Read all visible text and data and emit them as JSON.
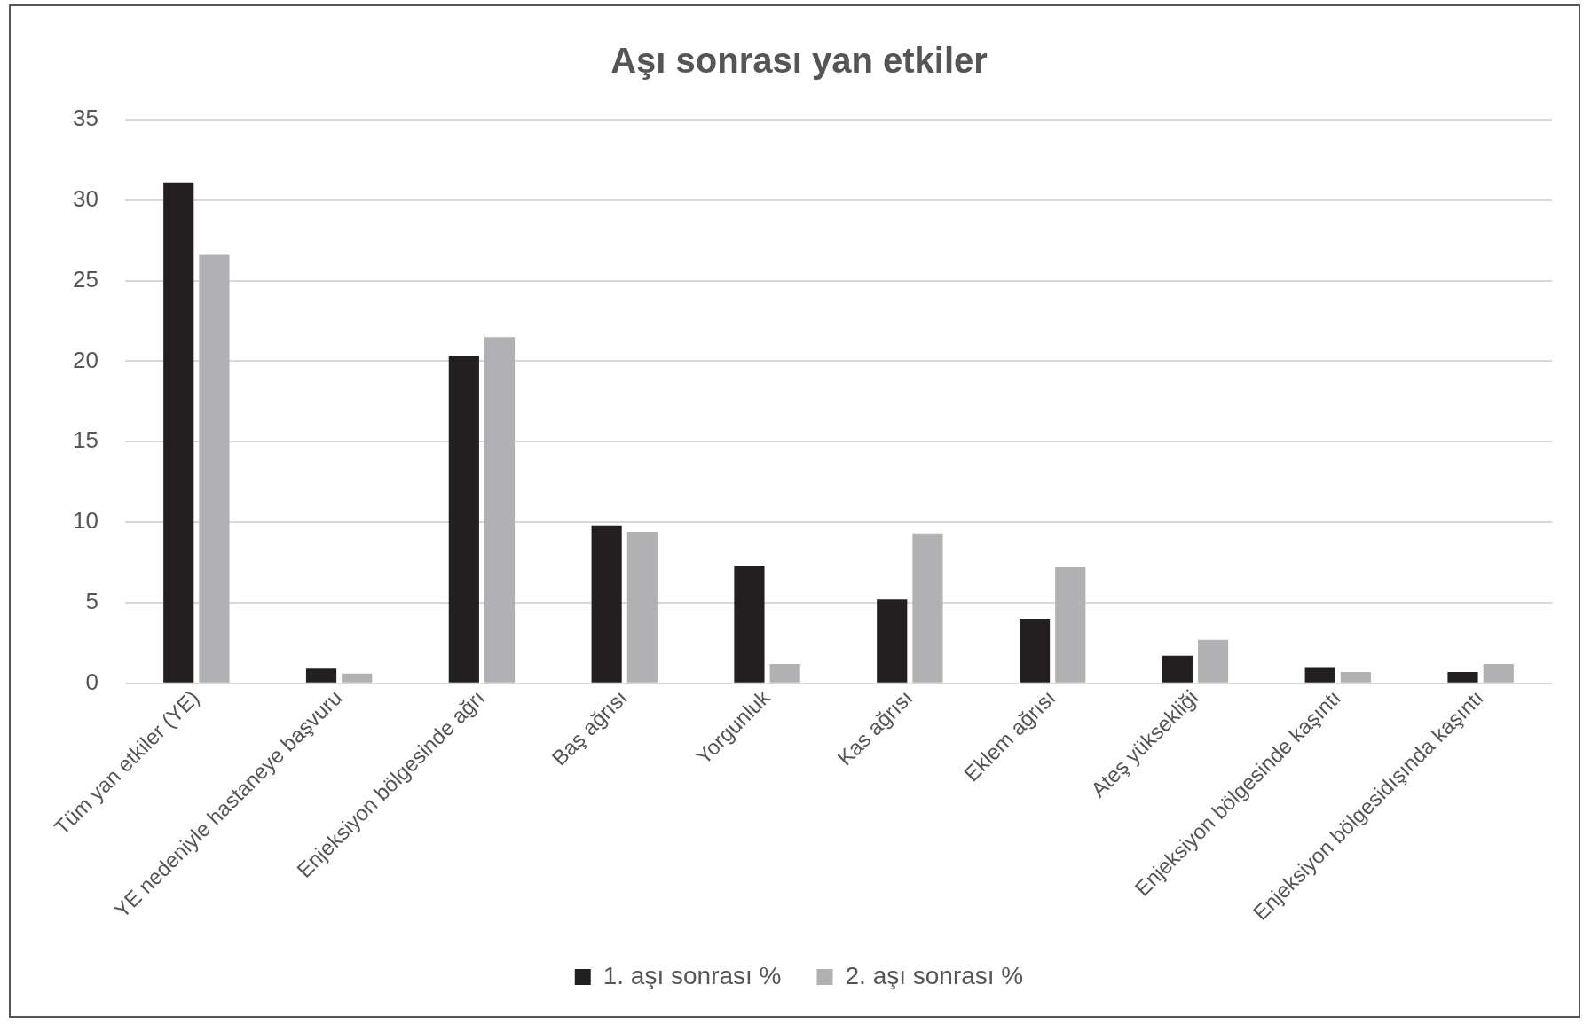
{
  "chart_data": {
    "type": "bar",
    "title": "Aşı sonrası yan etkiler",
    "categories": [
      "Tüm yan etkiler (YE)",
      "YE nedeniyle hastaneye başvuru",
      "Enjeksiyon bölgesinde ağrı",
      "Baş ağrısı",
      "Yorgunluk",
      "Kas ağrısı",
      "Eklem ağrısı",
      "Ateş yüksekliği",
      "Enjeksiyon bölgesinde kaşıntı",
      "Enjeksiyon bölgesidışında kaşıntı"
    ],
    "series": [
      {
        "name": "1. aşı sonrası %",
        "color": "#231f20",
        "values": [
          31.1,
          0.9,
          20.3,
          9.8,
          7.3,
          5.2,
          4.0,
          1.7,
          1.0,
          0.7
        ]
      },
      {
        "name": "2. aşı sonrası %",
        "color": "#b1b1b3",
        "values": [
          26.6,
          0.6,
          21.5,
          9.4,
          1.2,
          9.3,
          7.2,
          2.7,
          0.7,
          1.2
        ]
      }
    ],
    "ylim": [
      0,
      35
    ],
    "yticks": [
      0,
      5,
      10,
      15,
      20,
      25,
      30,
      35
    ],
    "grid": "y",
    "legend": "bottom"
  }
}
